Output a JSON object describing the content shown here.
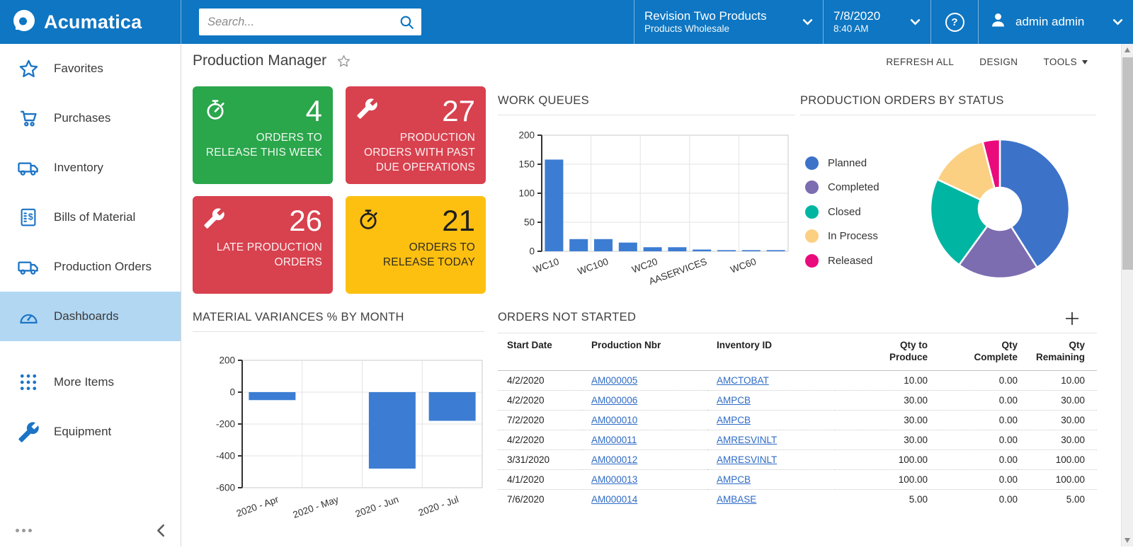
{
  "colors": {
    "header_bg": "#0e76c2",
    "sidebar_selected_bg": "#b2d7f2",
    "sidebar_icon": "#1b74c6",
    "link": "#2e6bc6",
    "tile_green": "#2aa64b",
    "tile_red": "#d8414e",
    "tile_yellow": "#fdc011",
    "bar_blue": "#3c7dd3"
  },
  "header": {
    "brand": "Acumatica",
    "search_placeholder": "Search...",
    "company": {
      "name": "Revision Two Products",
      "sub": "Products Wholesale"
    },
    "date": "7/8/2020",
    "time": "8:40 AM",
    "user": "admin admin"
  },
  "sidebar": {
    "items": [
      {
        "label": "Favorites",
        "icon": "star"
      },
      {
        "label": "Purchases",
        "icon": "cart"
      },
      {
        "label": "Inventory",
        "icon": "truck"
      },
      {
        "label": "Bills of Material",
        "icon": "bill"
      },
      {
        "label": "Production Orders",
        "icon": "truck"
      },
      {
        "label": "Dashboards",
        "icon": "gauge",
        "selected": true
      },
      {
        "label": "More Items",
        "icon": "grid",
        "gap": true
      },
      {
        "label": "Equipment",
        "icon": "wrench"
      }
    ]
  },
  "page": {
    "title": "Production Manager",
    "actions": [
      "REFRESH ALL",
      "DESIGN",
      "TOOLS"
    ]
  },
  "tiles": [
    {
      "value": "4",
      "label": "ORDERS TO RELEASE THIS WEEK",
      "icon": "stopwatch",
      "bg": "#2aa64b",
      "fg": "#ffffff"
    },
    {
      "value": "27",
      "label": "PRODUCTION ORDERS WITH PAST DUE OPERATIONS",
      "icon": "wrench",
      "bg": "#d8414e",
      "fg": "#ffffff"
    },
    {
      "value": "26",
      "label": "LATE PRODUCTION ORDERS",
      "icon": "wrench",
      "bg": "#d8414e",
      "fg": "#ffffff"
    },
    {
      "value": "21",
      "label": "ORDERS TO RELEASE TODAY",
      "icon": "stopwatch",
      "bg": "#fdc011",
      "fg": "#1f1f1f"
    }
  ],
  "chart_data": [
    {
      "type": "bar",
      "title": "WORK QUEUES",
      "tick_labels": [
        "WC10",
        "",
        "WC100",
        "",
        "WC20",
        "",
        "AASERVICES",
        "",
        "WC60",
        ""
      ],
      "values": [
        158,
        21,
        21,
        15,
        7,
        7,
        3,
        2,
        2,
        2
      ],
      "ylim": [
        0,
        200
      ],
      "yticks": [
        0,
        50,
        100,
        150,
        200
      ],
      "bar_color": "#3c7dd3",
      "grid": true,
      "xlabel": "",
      "ylabel": ""
    },
    {
      "type": "pie",
      "title": "PRODUCTION ORDERS BY STATUS",
      "labels": [
        "Planned",
        "Completed",
        "Closed",
        "In Process",
        "Released"
      ],
      "values": [
        41,
        19,
        22,
        14,
        4
      ],
      "colors": [
        "#3d72c9",
        "#7c6cb0",
        "#00b5a1",
        "#fbd083",
        "#e90a7c"
      ],
      "donut": true,
      "legend_position": "left"
    },
    {
      "type": "bar",
      "title": "MATERIAL VARIANCES % BY MONTH",
      "tick_labels": [
        "2020 - Apr",
        "2020 - May",
        "2020 - Jun",
        "2020 - Jul"
      ],
      "values": [
        -50,
        0,
        -480,
        -180
      ],
      "ylim": [
        -600,
        200
      ],
      "yticks": [
        200,
        0,
        -200,
        -400,
        -600
      ],
      "bar_color": "#3c7dd3",
      "grid": true,
      "xlabel": "",
      "ylabel": ""
    }
  ],
  "orders_table": {
    "title": "ORDERS NOT STARTED",
    "columns": [
      "Start Date",
      "Production Nbr",
      "Inventory ID",
      "Qty to\nProduce",
      "Qty\nComplete",
      "Qty\nRemaining"
    ],
    "rows": [
      [
        "4/2/2020",
        "AM000005",
        "AMCTOBAT",
        "10.00",
        "0.00",
        "10.00"
      ],
      [
        "4/2/2020",
        "AM000006",
        "AMPCB",
        "30.00",
        "0.00",
        "30.00"
      ],
      [
        "7/2/2020",
        "AM000010",
        "AMPCB",
        "30.00",
        "0.00",
        "30.00"
      ],
      [
        "4/2/2020",
        "AM000011",
        "AMRESVINLT",
        "30.00",
        "0.00",
        "30.00"
      ],
      [
        "3/31/2020",
        "AM000012",
        "AMRESVINLT",
        "100.00",
        "0.00",
        "100.00"
      ],
      [
        "4/1/2020",
        "AM000013",
        "AMPCB",
        "100.00",
        "0.00",
        "100.00"
      ],
      [
        "7/6/2020",
        "AM000014",
        "AMBASE",
        "5.00",
        "0.00",
        "5.00"
      ]
    ]
  }
}
